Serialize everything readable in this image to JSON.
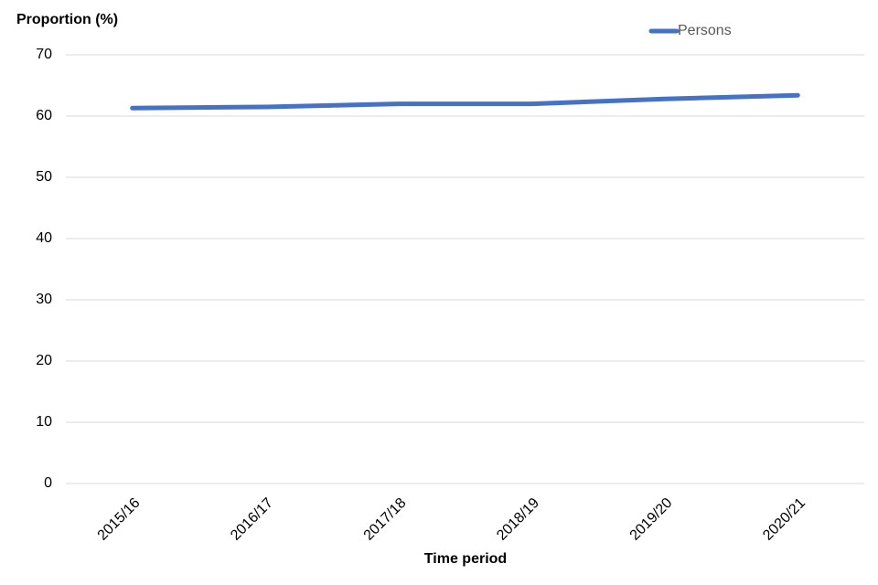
{
  "chart_data": {
    "type": "line",
    "title": "Proportion (%)",
    "x_label": "Time period",
    "categories": [
      "2015/16",
      "2016/17",
      "2017/18",
      "2018/19",
      "2019/20",
      "2020/21"
    ],
    "series": [
      {
        "name": "Persons",
        "color": "#4472c4",
        "values": [
          61.3,
          61.5,
          62.0,
          62.0,
          62.8,
          63.4
        ]
      }
    ],
    "ylim": [
      0,
      70
    ],
    "yticks": [
      0,
      10,
      20,
      30,
      40,
      50,
      60,
      70
    ],
    "grid": true,
    "legend": "top-right"
  }
}
